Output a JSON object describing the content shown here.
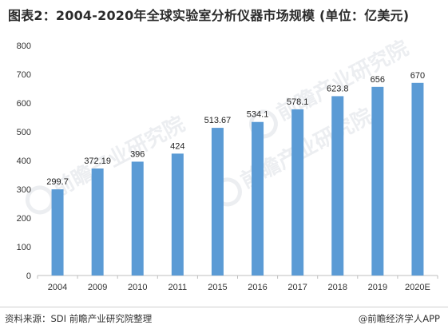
{
  "title": "图表2：2004-2020年全球实验室分析仪器市场规模 (单位：亿美元)",
  "footer": {
    "source": "资料来源：SDI 前瞻产业研究院整理",
    "credit": "@前瞻经济学人APP"
  },
  "watermark": "前瞻产业研究院",
  "colors": {
    "bar": "#5b9bd5",
    "axis": "#bfbfbf",
    "text": "#222222"
  },
  "chart_data": {
    "type": "bar",
    "categories": [
      "2004",
      "2009",
      "2010",
      "2011",
      "2015",
      "2016",
      "2017",
      "2018",
      "2019",
      "2020E"
    ],
    "values": [
      299.7,
      372.19,
      396,
      424,
      513.67,
      534.1,
      578.1,
      623.8,
      656,
      670
    ],
    "value_labels": [
      "299.7",
      "372.19",
      "396",
      "424",
      "513.67",
      "534.1",
      "578.1",
      "623.8",
      "656",
      "670"
    ],
    "y_ticks": [
      0,
      100,
      200,
      300,
      400,
      500,
      600,
      700,
      800
    ],
    "ylim": [
      0,
      800
    ],
    "grid": false,
    "legend": "none"
  }
}
